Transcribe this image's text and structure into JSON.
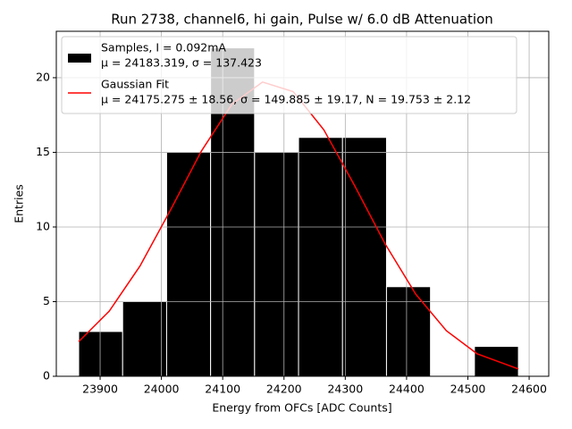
{
  "chart_data": {
    "type": "histogram",
    "title": "Run 2738, channel6, hi gain, Pulse w/ 6.0 dB Attenuation",
    "xlabel": "Energy from OFCs [ADC Counts]",
    "ylabel": "Entries",
    "bins": [
      23865,
      23936.75,
      24008.5,
      24080.25,
      24152,
      24223.75,
      24295.5,
      24367.25,
      24439,
      24510.75,
      24582.5
    ],
    "series": [
      {
        "type": "histogram",
        "name": "Samples, I = 0.092mA",
        "description": "μ = 24183.319, σ = 137.423",
        "color": "#000000",
        "edgecolor": "#ffffff",
        "values": [
          3,
          5,
          15,
          22,
          15,
          16,
          16,
          6,
          0,
          2
        ]
      },
      {
        "type": "line",
        "name": "Gaussian Fit",
        "description": "μ = 24175.275 ± 18.56, σ = 149.885 ± 19.17, N = 19.753 ± 2.12",
        "color": "#ff0000",
        "x": [
          23865,
          23915,
          23965,
          24015,
          24065,
          24115,
          24165,
          24215,
          24265,
          24315,
          24365,
          24415,
          24465,
          24515,
          24582.5
        ],
        "values": [
          2.32,
          4.37,
          7.38,
          11.15,
          15.07,
          18.22,
          19.71,
          19.07,
          16.51,
          12.79,
          8.87,
          5.5,
          3.05,
          1.51,
          0.49
        ]
      }
    ],
    "xlim": [
      23828.5,
      24632
    ],
    "ylim": [
      0,
      23.11
    ],
    "xticks": [
      23900,
      24000,
      24100,
      24200,
      24300,
      24400,
      24500,
      24600
    ],
    "yticks": [
      0,
      5,
      10,
      15,
      20
    ],
    "grid": true,
    "legend": "upper left"
  }
}
